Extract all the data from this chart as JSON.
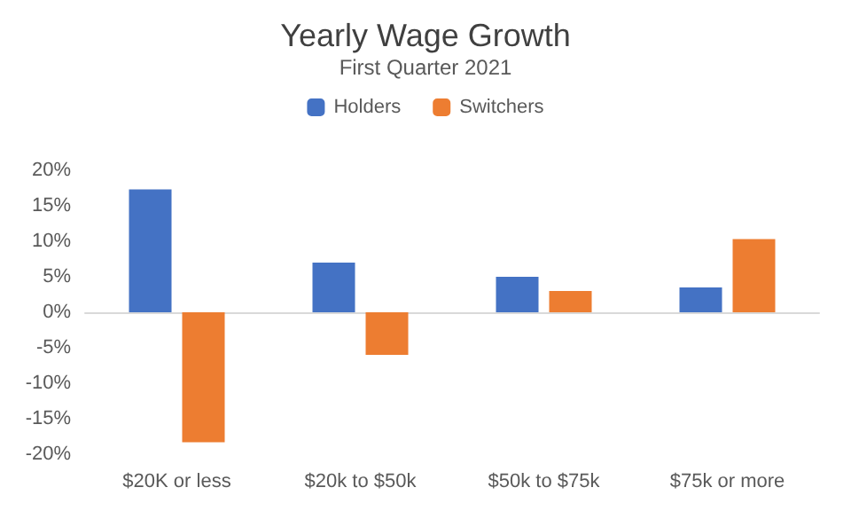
{
  "chart_data": {
    "type": "bar",
    "title": "Yearly Wage Growth",
    "subtitle": "First Quarter 2021",
    "categories": [
      "$20K or less",
      "$20k to $50k",
      "$50k to $75k",
      "$75k or more"
    ],
    "series": [
      {
        "name": "Holders",
        "color": "#4472c4",
        "values": [
          17.3,
          7.0,
          5.0,
          3.5
        ]
      },
      {
        "name": "Switchers",
        "color": "#ed7d31",
        "values": [
          -18.3,
          -6.0,
          3.0,
          10.3
        ]
      }
    ],
    "ylim": [
      -20,
      20
    ],
    "yticks": [
      {
        "value": -20,
        "label": "-20%"
      },
      {
        "value": -15,
        "label": "-15%"
      },
      {
        "value": -10,
        "label": "-10%"
      },
      {
        "value": -5,
        "label": "-5%"
      },
      {
        "value": 0,
        "label": "0%"
      },
      {
        "value": 5,
        "label": "5%"
      },
      {
        "value": 10,
        "label": "10%"
      },
      {
        "value": 15,
        "label": "15%"
      },
      {
        "value": 20,
        "label": "20%"
      }
    ],
    "legend": "top"
  }
}
